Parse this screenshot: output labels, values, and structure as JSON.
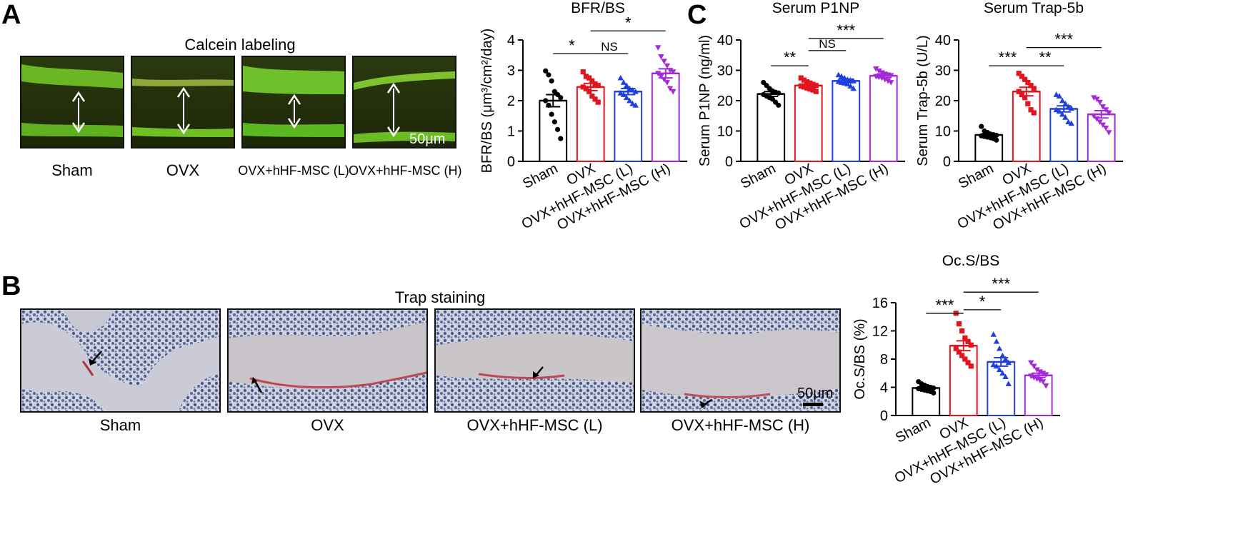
{
  "panels": {
    "a": {
      "letter": "A",
      "title": "Calcein labeling",
      "captions": [
        "Sham",
        "OVX",
        "OVX+hHF-MSC (L)",
        "OVX+hHF-MSC (H)"
      ],
      "scale_bar": "50μm"
    },
    "b": {
      "letter": "B",
      "title": "Trap staining",
      "captions": [
        "Sham",
        "OVX",
        "OVX+hHF-MSC (L)",
        "OVX+hHF-MSC (H)"
      ],
      "scale_bar": "50μm"
    },
    "c": {
      "letter": "C"
    }
  },
  "colors": {
    "sham": "#000000",
    "ovx": "#e3141d",
    "low": "#1f3fe0",
    "high": "#a52ad6"
  },
  "chart_data": [
    {
      "type": "bar",
      "title": "BFR/BS",
      "ylabel": "BFR/BS (μm³/cm²/day)",
      "ylim": [
        0,
        4
      ],
      "yticks": [
        0,
        1,
        2,
        3,
        4
      ],
      "categories": [
        "Sham",
        "OVX",
        "OVX+hHF-MSC (L)",
        "OVX+hHF-MSC (H)"
      ],
      "values": [
        2.0,
        2.45,
        2.3,
        2.9
      ],
      "errors": [
        0.2,
        0.12,
        0.1,
        0.15
      ],
      "markers": [
        "circle",
        "square",
        "triangle",
        "triangle-down"
      ],
      "points": [
        [
          2.98,
          2.85,
          2.65,
          2.3,
          2.2,
          2.1,
          2.0,
          1.85,
          1.55,
          1.3,
          1.05,
          0.75
        ],
        [
          2.95,
          2.8,
          2.75,
          2.65,
          2.55,
          2.5,
          2.45,
          2.4,
          2.3,
          2.15,
          2.05,
          1.95
        ],
        [
          2.75,
          2.6,
          2.5,
          2.4,
          2.35,
          2.3,
          2.25,
          2.2,
          2.1,
          2.0,
          1.9,
          1.85
        ],
        [
          3.75,
          3.45,
          3.3,
          3.15,
          3.0,
          2.95,
          2.9,
          2.8,
          2.7,
          2.6,
          2.4,
          2.3
        ]
      ],
      "significance": [
        {
          "from": 0,
          "to": 1,
          "label": "*",
          "y": 3.55
        },
        {
          "from": 1,
          "to": 2,
          "label": "NS",
          "y": 3.55
        },
        {
          "from": 1,
          "to": 3,
          "label": "*",
          "y": 4.3
        }
      ]
    },
    {
      "type": "bar",
      "title": "Serum P1NP",
      "ylabel": "Serum P1NP (ng/ml)",
      "ylim": [
        0,
        40
      ],
      "yticks": [
        0,
        10,
        20,
        30,
        40
      ],
      "categories": [
        "Sham",
        "OVX",
        "OVX+hHF-MSC (L)",
        "OVX+hHF-MSC (H)"
      ],
      "values": [
        22.2,
        25.0,
        26.5,
        28.2
      ],
      "errors": [
        0.8,
        0.5,
        0.6,
        0.6
      ],
      "markers": [
        "circle",
        "square",
        "triangle",
        "triangle-down"
      ],
      "points": [
        [
          26.0,
          25.0,
          24.0,
          23.2,
          22.8,
          22.5,
          22.0,
          21.5,
          21.0,
          20.5,
          19.5,
          18.5
        ],
        [
          27.5,
          26.8,
          26.2,
          25.8,
          25.4,
          25.0,
          24.8,
          24.5,
          24.2,
          23.8,
          23.5,
          23.0
        ],
        [
          28.5,
          28.0,
          27.5,
          27.0,
          26.8,
          26.5,
          26.3,
          26.0,
          25.8,
          25.5,
          24.8,
          24.0
        ],
        [
          30.5,
          29.8,
          29.2,
          28.8,
          28.5,
          28.3,
          28.0,
          27.8,
          27.5,
          27.0,
          26.5,
          26.0
        ]
      ],
      "significance": [
        {
          "from": 0,
          "to": 1,
          "label": "**",
          "y": 31.5
        },
        {
          "from": 1,
          "to": 2,
          "label": "NS",
          "y": 36.5
        },
        {
          "from": 1,
          "to": 3,
          "label": "***",
          "y": 40.5
        }
      ]
    },
    {
      "type": "bar",
      "title": "Serum Trap-5b",
      "ylabel": "Serum Trap-5b (U/L)",
      "ylim": [
        0,
        40
      ],
      "yticks": [
        0,
        10,
        20,
        30,
        40
      ],
      "categories": [
        "Sham",
        "OVX",
        "OVX+hHF-MSC (L)",
        "OVX+hHF-MSC (H)"
      ],
      "values": [
        8.7,
        23.0,
        17.3,
        15.5
      ],
      "errors": [
        0.4,
        1.4,
        1.0,
        1.2
      ],
      "markers": [
        "circle",
        "square",
        "triangle",
        "triangle-down"
      ],
      "points": [
        [
          11.5,
          10.0,
          9.5,
          9.0,
          8.8,
          8.6,
          8.4,
          8.2,
          8.0,
          7.8,
          7.5,
          7.0
        ],
        [
          29.0,
          28.0,
          27.0,
          26.0,
          25.0,
          24.0,
          23.0,
          22.0,
          21.0,
          19.0,
          17.0,
          16.0
        ],
        [
          22.0,
          21.5,
          20.0,
          19.0,
          18.0,
          17.5,
          17.0,
          16.5,
          15.5,
          14.5,
          13.0,
          12.5
        ],
        [
          21.0,
          20.5,
          19.5,
          18.0,
          17.0,
          16.0,
          15.0,
          14.0,
          13.0,
          12.0,
          11.0,
          9.5
        ]
      ],
      "significance": [
        {
          "from": 0,
          "to": 1,
          "label": "***",
          "y": 31.5
        },
        {
          "from": 1,
          "to": 2,
          "label": "**",
          "y": 31.5
        },
        {
          "from": 1,
          "to": 3,
          "label": "***",
          "y": 37.5
        }
      ]
    },
    {
      "type": "bar",
      "title": "Oc.S/BS",
      "ylabel": "Oc.S/BS (%)",
      "ylim": [
        0,
        16
      ],
      "yticks": [
        0,
        4,
        8,
        12,
        16
      ],
      "categories": [
        "Sham",
        "OVX",
        "OVX+hHF-MSC (L)",
        "OVX+hHF-MSC (H)"
      ],
      "values": [
        3.9,
        9.9,
        7.6,
        5.7
      ],
      "errors": [
        0.2,
        0.7,
        0.6,
        0.3
      ],
      "markers": [
        "circle",
        "square",
        "triangle",
        "triangle-down"
      ],
      "points": [
        [
          4.8,
          4.5,
          4.3,
          4.1,
          4.0,
          3.9,
          3.8,
          3.7,
          3.6,
          3.5,
          3.4,
          3.2
        ],
        [
          14.5,
          13.0,
          12.0,
          11.0,
          10.5,
          10.0,
          9.5,
          9.0,
          8.5,
          8.0,
          7.5,
          7.0
        ],
        [
          11.5,
          10.5,
          9.5,
          8.5,
          8.0,
          7.5,
          7.2,
          7.0,
          6.5,
          6.0,
          5.5,
          4.5
        ],
        [
          7.5,
          7.0,
          6.5,
          6.2,
          6.0,
          5.8,
          5.6,
          5.4,
          5.2,
          5.0,
          4.8,
          4.2
        ]
      ],
      "significance": [
        {
          "from": 0,
          "to": 1,
          "label": "***",
          "y": 14.5
        },
        {
          "from": 1,
          "to": 2,
          "label": "*",
          "y": 15.0
        },
        {
          "from": 1,
          "to": 3,
          "label": "***",
          "y": 17.5
        }
      ]
    }
  ]
}
